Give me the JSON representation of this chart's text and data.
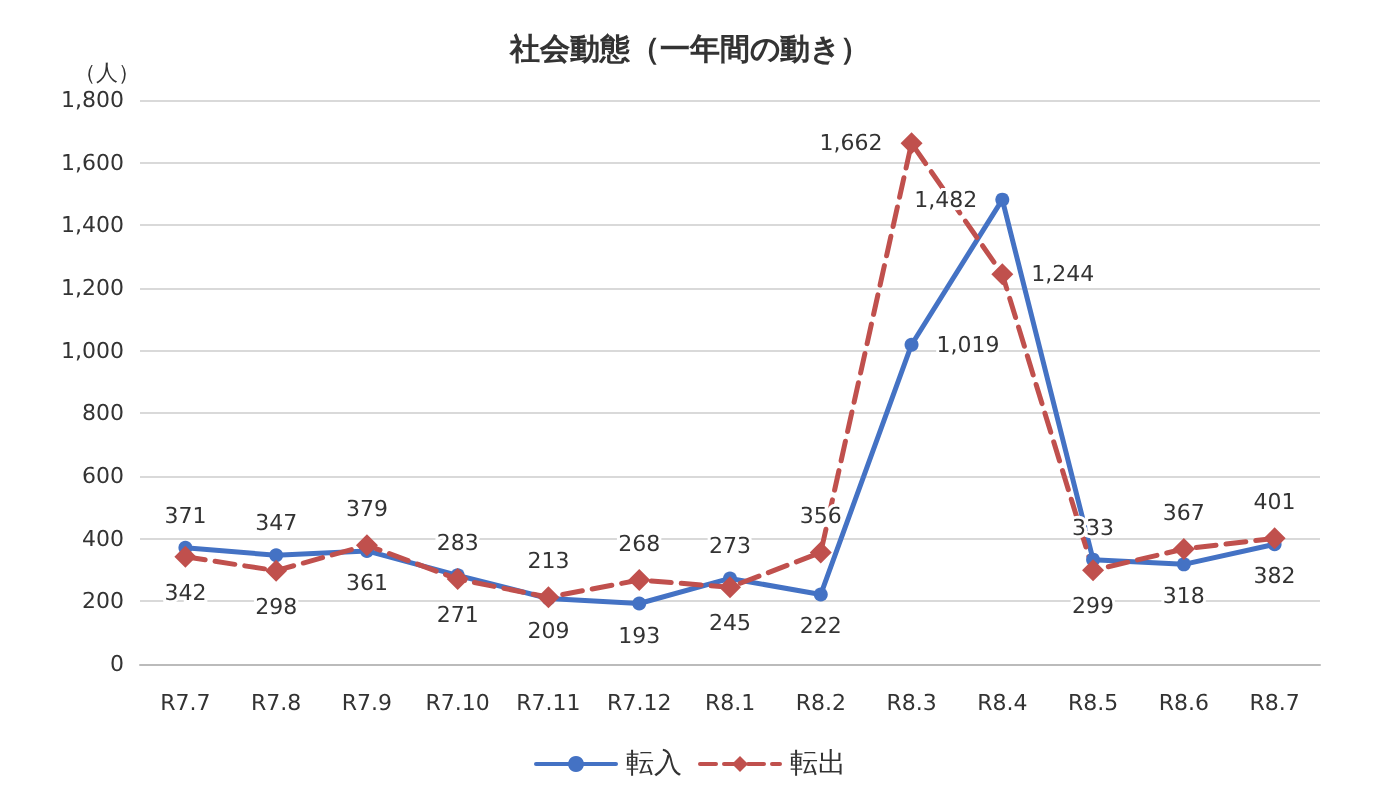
{
  "chart_data": {
    "type": "line",
    "title": "社会動態（一年間の動き）",
    "ylabel": "（人）",
    "categories": [
      "R7.7",
      "R7.8",
      "R7.9",
      "R7.10",
      "R7.11",
      "R7.12",
      "R8.1",
      "R8.2",
      "R8.3",
      "R8.4",
      "R8.5",
      "R8.6",
      "R8.7"
    ],
    "series": [
      {
        "name": "転入",
        "color": "#4472c4",
        "marker": "circle",
        "line_style": "solid",
        "values": [
          371,
          347,
          361,
          283,
          209,
          193,
          273,
          222,
          1019,
          1482,
          333,
          318,
          382
        ],
        "value_labels": [
          "371",
          "347",
          "361",
          "283",
          "209",
          "193",
          "273",
          "222",
          "1,019",
          "1,482",
          "333",
          "318",
          "382"
        ]
      },
      {
        "name": "転出",
        "color": "#c0504d",
        "marker": "diamond",
        "line_style": "dashed",
        "values": [
          342,
          298,
          379,
          271,
          213,
          268,
          245,
          356,
          1662,
          1244,
          299,
          367,
          401
        ],
        "value_labels": [
          "342",
          "298",
          "379",
          "271",
          "213",
          "268",
          "245",
          "356",
          "1,662",
          "1,244",
          "299",
          "367",
          "401"
        ]
      }
    ],
    "ylim": [
      0,
      1800
    ],
    "yticks": [
      0,
      200,
      400,
      600,
      800,
      {
        "value": 1000,
        "label": "1,000"
      },
      {
        "value": 1200,
        "label": "1,200"
      },
      {
        "value": 1400,
        "label": "1,400"
      },
      {
        "value": 1600,
        "label": "1,600"
      },
      {
        "value": 1800,
        "label": "1,800"
      }
    ],
    "grid": "y",
    "legend": "bottom"
  }
}
